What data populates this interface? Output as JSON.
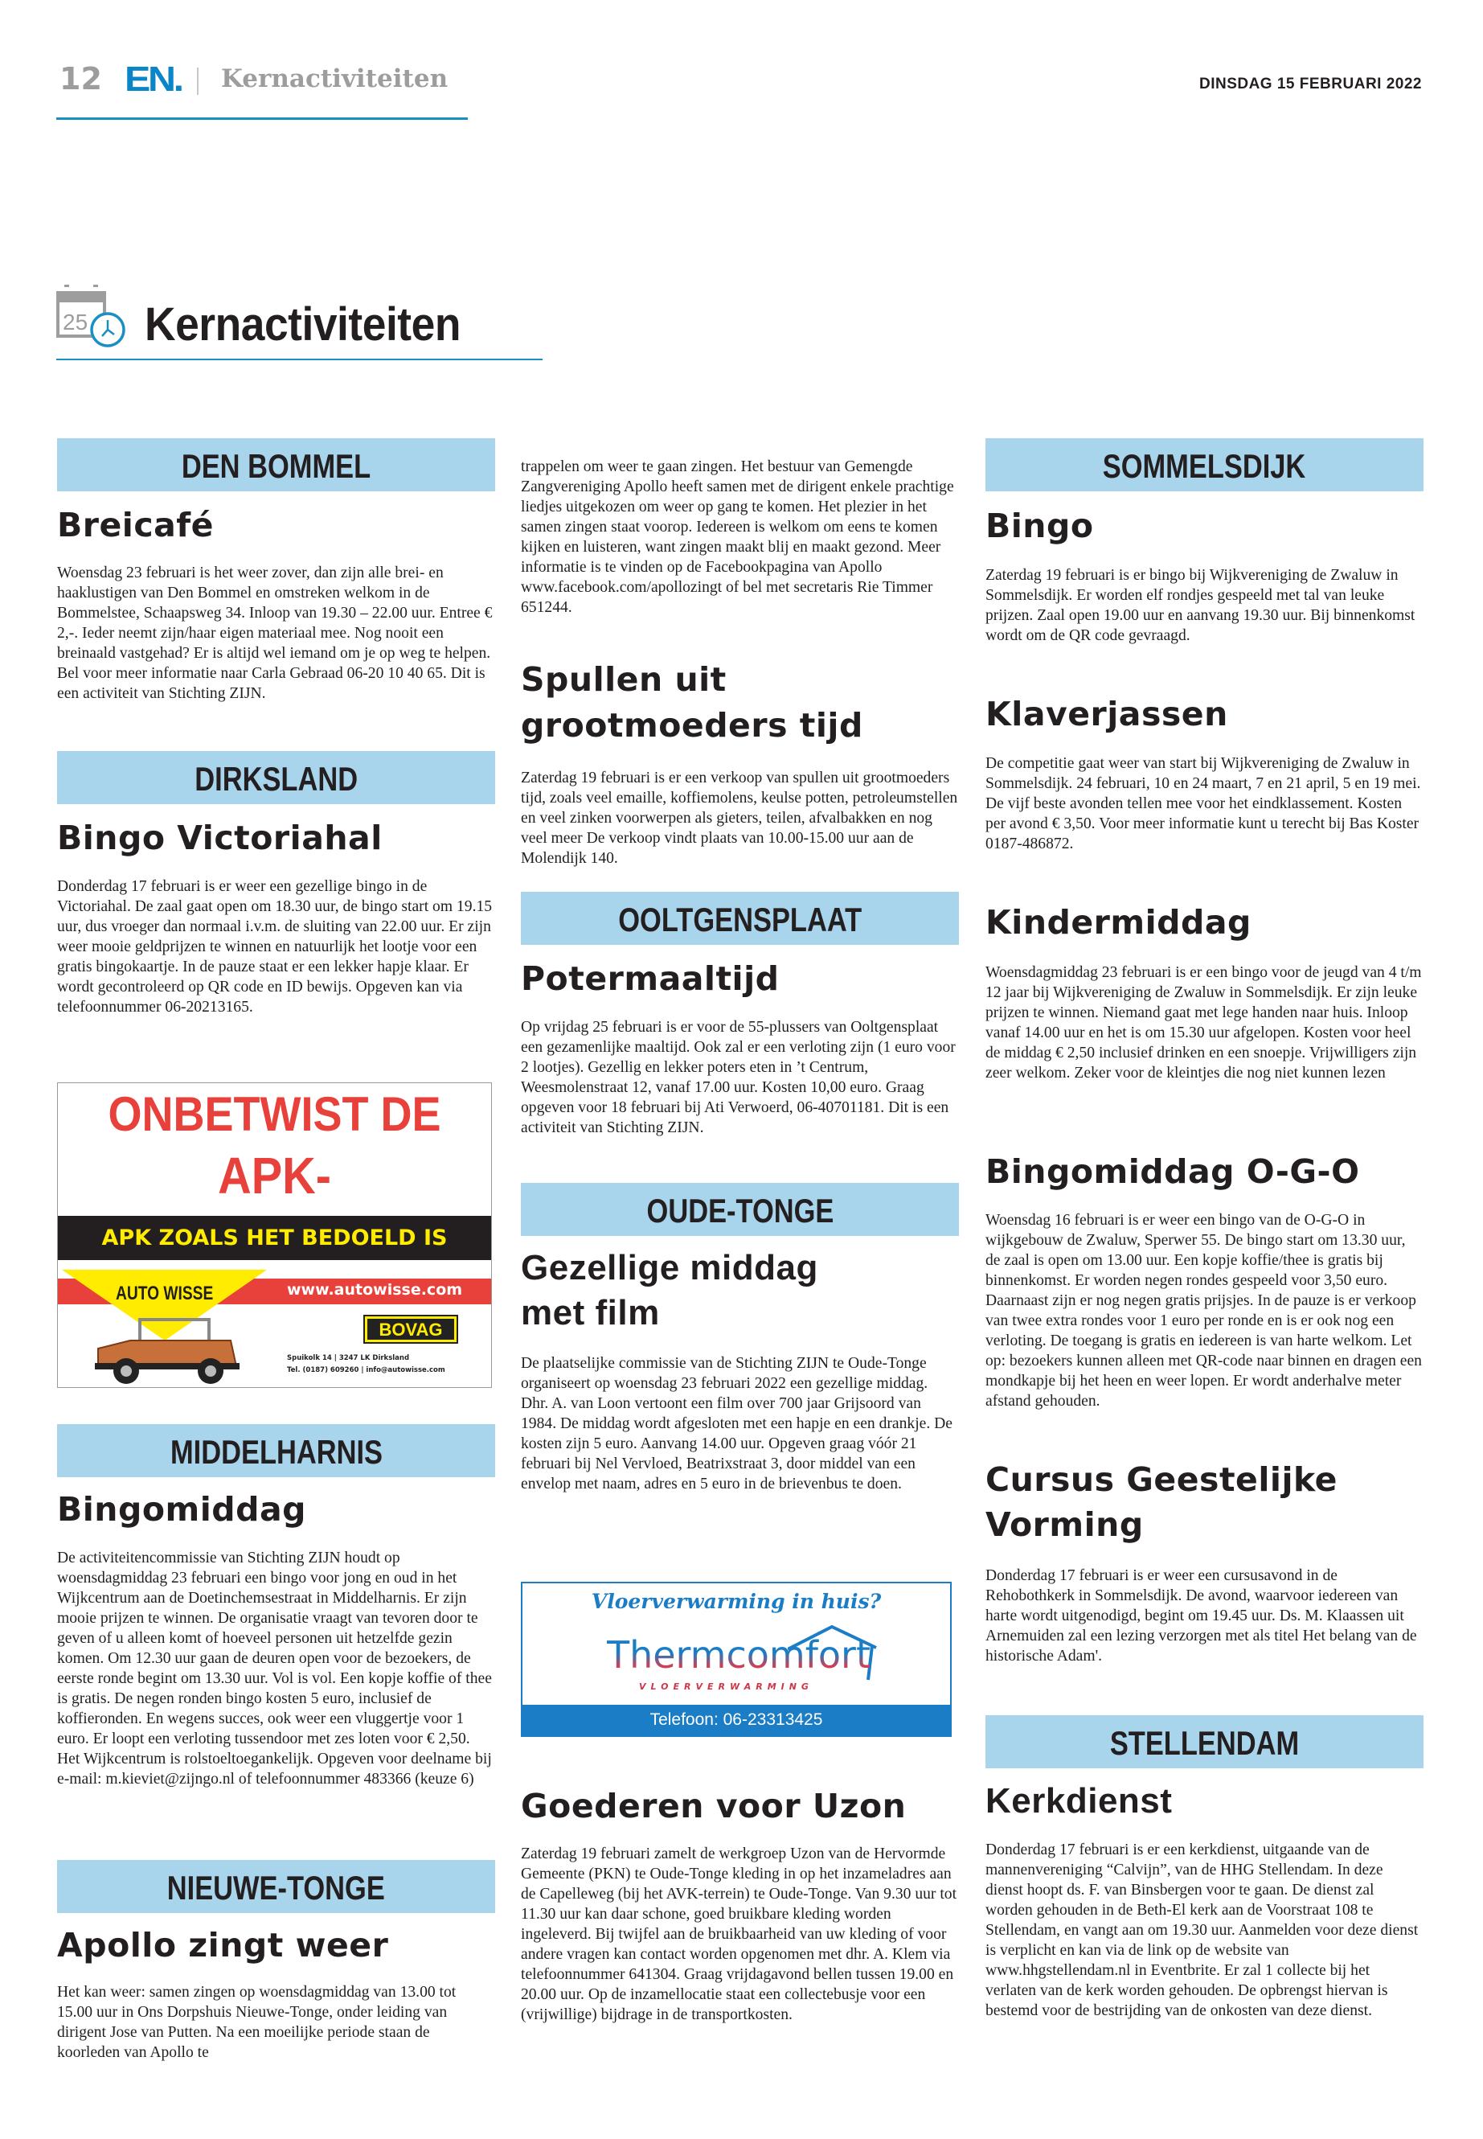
{
  "header": {
    "page_number": "12",
    "brand": "EN.",
    "section": "Kernactiviteiten",
    "date": "DINSDAG 15 FEBRUARI 2022",
    "accent_color": "#1b8fc2"
  },
  "title": {
    "text": "Kernactiviteiten",
    "icon": "calendar-clock-icon",
    "icon_number": "25"
  },
  "region_bar_color": "#a8d4ec",
  "columns": [
    {
      "items": [
        {
          "region": "DEN BOMMEL",
          "heading": "Breicafé",
          "body": "Woensdag 23 februari is het weer zover, dan zijn alle brei- en haaklustigen van Den Bommel en omstreken welkom in de Bommelstee, Schaapsweg 34. Inloop van 19.30 – 22.00 uur. Entree € 2,-. Ieder neemt zijn/haar eigen materiaal mee. Nog nooit een breinaald vastgehad? Er is altijd wel iemand om je op weg te helpen. Bel voor meer informatie naar Carla Gebraad 06-20 10 40 65. Dit is een activiteit van Stichting ZIJN."
        },
        {
          "region": "DIRKSLAND",
          "heading": "Bingo Victoriahal",
          "body": "Donderdag 17 februari is er weer een gezellige bingo in de Victoriahal. De zaal gaat open om 18.30 uur, de bingo start om 19.15 uur, dus vroeger dan normaal i.v.m. de sluiting van 22.00 uur. Er zijn weer mooie geldprijzen te winnen en natuurlijk het lootje voor een gratis bingokaartje. In de pauze staat er een lekker hapje klaar. Er wordt gecontroleerd op QR code en ID bewijs. Opgeven kan via telefoonnummer 06-20213165."
        },
        {
          "region": "MIDDELHARNIS",
          "heading": "Bingomiddag",
          "body": "De activiteitencommissie van Stichting ZIJN houdt op woensdagmiddag 23 februari een bingo voor jong en oud in het Wijkcentrum aan de Doetinchemsestraat in Middelharnis. Er zijn mooie prijzen te winnen. De organisatie vraagt van tevoren door te geven of u alleen komt of hoeveel personen uit hetzelfde gezin komen. Om 12.30 uur gaan de deuren open voor de bezoekers, de eerste ronde begint om 13.30 uur. Vol is vol. Een kopje koffie of thee is gratis. De negen ronden bingo kosten 5 euro, inclusief de koffieronden. En wegens succes, ook weer een vluggertje voor 1 euro.  Er loopt een verloting tussendoor met zes loten voor € 2,50. Het Wijkcentrum is rolstoeltoegankelijk. Opgeven voor deelname bij e-mail: m.kieviet@zijngo.nl of telefoonnummer 483366 (keuze 6)"
        },
        {
          "region": "NIEUWE-TONGE",
          "heading": "Apollo zingt weer",
          "body": "Het kan weer: samen zingen op woensdagmiddag van 13.00 tot 15.00 uur in Ons Dorpshuis Nieuwe-Tonge, onder leiding van dirigent Jose van Putten. Na een moeilijke periode staan de koorleden van Apollo te"
        }
      ]
    },
    {
      "items": [
        {
          "body": "trappelen om weer te gaan zingen. Het bestuur van Gemengde Zangvereniging Apollo heeft samen met de dirigent enkele prachtige liedjes uitgekozen om weer op gang te komen. Het plezier in het samen zingen staat voorop. Iedereen is welkom om eens te komen kijken en luisteren, want zingen maakt blij en maakt gezond. Meer informatie is te vinden op de Facebookpagina van Apollo www.facebook.com/apollozingt of bel met secretaris Rie Timmer 651244."
        },
        {
          "heading": "Spullen uit grootmoeders tijd",
          "body": "Zaterdag 19 februari is er een verkoop van spullen uit grootmoeders tijd, zoals veel emaille, koffiemolens, keulse potten, petroleumstellen en veel zinken voorwerpen als gieters, teilen, afvalbakken en nog veel meer De verkoop vindt plaats van 10.00-15.00 uur aan de Molendijk 140."
        },
        {
          "region": "OOLTGENSPLAAT",
          "heading": "Potermaaltijd",
          "body": "Op vrijdag 25 februari is er voor de 55-plussers van Ooltgensplaat een gezamenlijke maaltijd. Ook zal er een verloting zijn (1 euro voor 2 lootjes). Gezellig en lekker poters eten in ’t Centrum, Weesmolenstraat 12, vanaf 17.00 uur. Kosten 10,00 euro. Graag opgeven voor 18 februari bij Ati Verwoerd, 06-40701181. Dit is een activiteit van Stichting ZIJN."
        },
        {
          "region": "OUDE-TONGE",
          "heading": "Gezellige middag met film",
          "body": "De plaatselijke commissie van de Stichting ZIJN te Oude-Tonge organiseert op woensdag 23 februari 2022 een gezellige middag. Dhr. A. van Loon vertoont een film over 700 jaar Grijsoord van 1984. De middag wordt afgesloten met een hapje en een drankje. De kosten zijn 5 euro. Aanvang 14.00 uur. Opgeven graag vóór 21 februari bij Nel Vervloed, Beatrixstraat 3, door middel van een envelop met naam, adres en 5 euro in de brievenbus te doen."
        },
        {
          "heading": "Goederen voor Uzon",
          "body": "Zaterdag 19 februari zamelt de werkgroep Uzon van de Hervormde Gemeente (PKN) te Oude-Tonge kleding in op het inzameladres aan de Capelleweg (bij het AVK-terrein) te Oude-Tonge. Van 9.30 uur tot 11.30 uur kan daar schone, goed bruikbare kleding worden ingeleverd. Bij twijfel aan de bruikbaarheid van uw kleding of voor andere vragen kan contact worden opgenomen met dhr. A. Klem via telefoonnummer 641304. Graag vrijdagavond bellen tussen 19.00 en 20.00 uur. Op de inzamellocatie staat een collectebusje voor een (vrijwillige) bijdrage in de transportkosten."
        }
      ]
    },
    {
      "items": [
        {
          "region": "SOMMELSDIJK",
          "heading": "Bingo",
          "body": "Zaterdag 19 februari is er bingo bij Wijkvereniging de Zwaluw in Sommelsdijk. Er worden elf rondjes gespeeld met tal van leuke prijzen. Zaal open 19.00 uur en aanvang 19.30 uur. Bij binnenkomst wordt om de QR code gevraagd."
        },
        {
          "heading": "Klaverjassen",
          "body": "De competitie gaat weer van start bij Wijkvereniging de Zwaluw in Sommelsdijk. 24 februari, 10 en 24 maart, 7 en 21 april, 5 en 19 mei. De vijf beste avonden tellen mee voor het eindklassement. Kosten per avond € 3,50. Voor meer informatie kunt u terecht bij Bas Koster 0187-486872."
        },
        {
          "heading": "Kindermiddag",
          "body": "Woensdagmiddag 23 februari is er een bingo voor de jeugd van 4 t/m 12 jaar bij Wijkvereniging de Zwaluw in Sommelsdijk. Er zijn leuke prijzen te winnen. Niemand gaat met lege handen naar huis. Inloop vanaf 14.00 uur en het is om 15.30 uur afgelopen. Kosten voor heel de middag € 2,50 inclusief drinken en een snoepje. Vrijwilligers zijn zeer welkom. Zeker voor de kleintjes die nog niet kunnen lezen"
        },
        {
          "heading": "Bingomiddag O-G-O",
          "body": "Woensdag 16 februari is er weer een bingo van de O-G-O in wijkgebouw de Zwaluw, Sperwer 55. De bingo start om 13.30 uur, de zaal is open om 13.00 uur. Een kopje koffie/thee is gratis bij binnenkomst. Er worden negen rondes gespeeld voor 3,50 euro. Daarnaast zijn er nog negen gratis prijsjes. In de pauze is er verkoop van twee extra rondes voor 1 euro per ronde en is er ook nog een verloting. De toegang is gratis en iedereen is van harte welkom. Let op: bezoekers kunnen alleen met QR-code naar binnen en dragen een mondkapje bij het heen en weer lopen. Er wordt anderhalve meter afstand gehouden."
        },
        {
          "heading": "Cursus Geestelijke Vorming",
          "body": "Donderdag 17 februari is er weer een cursusavond in de Rehobothkerk in Sommelsdijk. De avond, waarvoor iedereen van harte wordt uitgenodigd, begint om 19.45 uur. Ds. M. Klaassen uit Arnemuiden zal een lezing verzorgen met als titel Het belang van de historische Adam'."
        },
        {
          "region": "STELLENDAM",
          "heading": "Kerkdienst",
          "body": "Donderdag 17 februari is er een kerkdienst, uitgaande van de mannenvereniging “Calvijn”, van de HHG Stellendam. In deze dienst hoopt ds. F. van Binsbergen voor te gaan. De dienst zal worden gehouden in de Beth-El kerk aan de Voorstraat 108 te Stellendam, en vangt aan om 19.30 uur. Aanmelden voor deze dienst is verplicht en kan via de link op de website van www.hhgstellendam.nl in Eventbrite. Er zal 1 collecte bij het verlaten van de kerk worden gehouden. De opbrengst hiervan is bestemd voor de bestrijding van de onkosten van deze dienst."
        }
      ]
    }
  ],
  "ad_autowisse": {
    "headline_1": "ONBETWIST DE",
    "headline_2": "APK-SPECIALIST!",
    "tagline": "APK ZOALS HET BEDOELD IS",
    "brand": "AUTO WISSE",
    "website": "www.autowisse.com",
    "badge": "BOVAG",
    "address": "Spuikolk 14 | 3247 LK Dirksland",
    "contact": "Tel. (0187) 609260 | info@autowisse.com"
  },
  "ad_thermcomfort": {
    "question": "Vloerverwarming in huis?",
    "brand": "Thermcomfort",
    "subtitle": "VLOERVERWARMING",
    "phone": "Telefoon: 06-23313425"
  }
}
